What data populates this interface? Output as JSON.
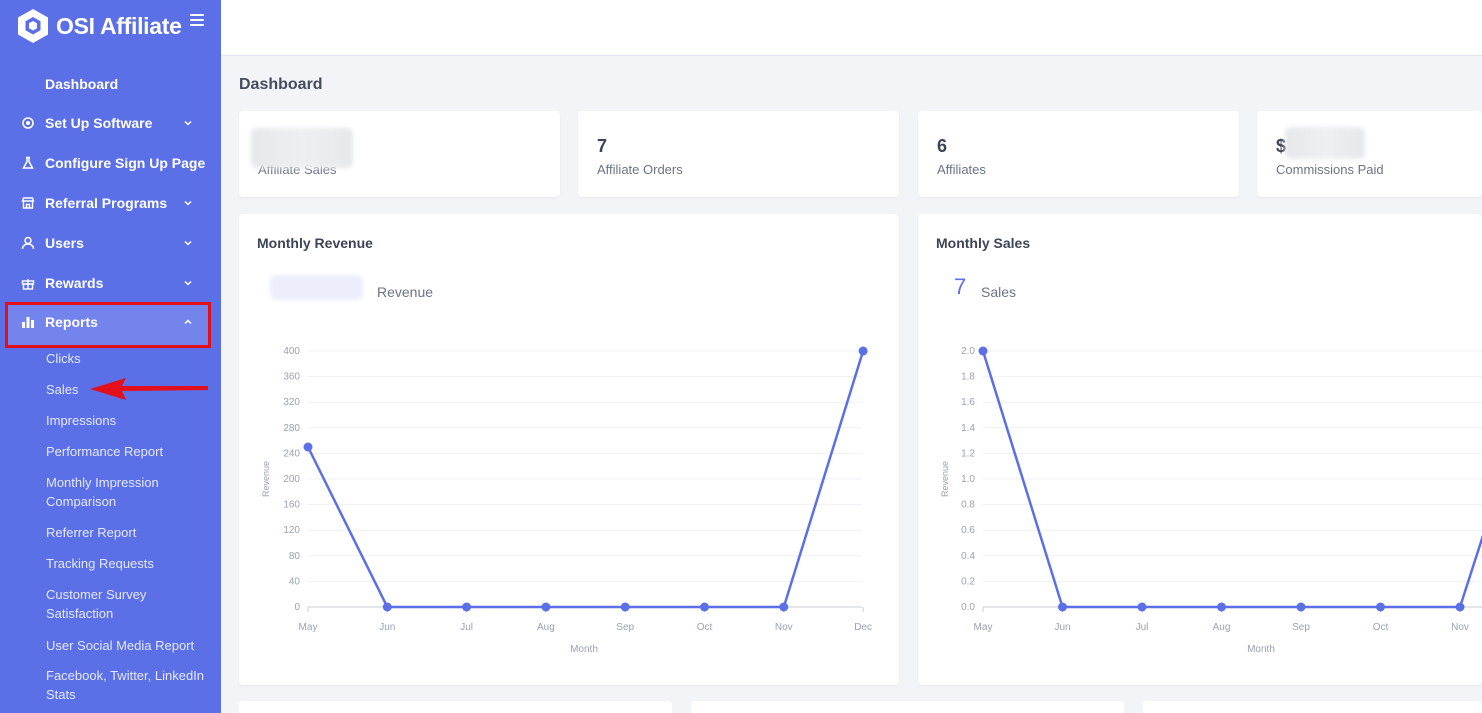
{
  "app": {
    "title": "OSI Affiliate"
  },
  "sidebar": {
    "dashboard": "Dashboard",
    "items": [
      {
        "label": "Set Up Software",
        "icon": "gear-icon",
        "expandable": true
      },
      {
        "label": "Configure Sign Up Page",
        "icon": "flask-icon",
        "expandable": false
      },
      {
        "label": "Referral Programs",
        "icon": "store-icon",
        "expandable": true
      },
      {
        "label": "Users",
        "icon": "user-icon",
        "expandable": true
      },
      {
        "label": "Rewards",
        "icon": "gift-icon",
        "expandable": true
      },
      {
        "label": "Reports",
        "icon": "bar-chart-icon",
        "expandable": true,
        "expanded": true
      }
    ],
    "reports_sub": [
      "Clicks",
      "Sales",
      "Impressions",
      "Performance Report",
      "Monthly Impression Comparison",
      "Referrer Report",
      "Tracking Requests",
      "Customer Survey Satisfaction",
      "User Social Media Report",
      "Facebook, Twitter, LinkedIn Stats"
    ]
  },
  "page": {
    "title": "Dashboard"
  },
  "stats": [
    {
      "value": "",
      "label": "Affiliate Sales"
    },
    {
      "value": "7",
      "label": "Affiliate Orders"
    },
    {
      "value": "6",
      "label": "Affiliates"
    },
    {
      "value": "$",
      "label": "Commissions Paid"
    }
  ],
  "charts": {
    "revenue": {
      "title": "Monthly Revenue",
      "legend_value": "",
      "legend_label": "Revenue"
    },
    "sales": {
      "title": "Monthly Sales",
      "legend_value": "7",
      "legend_label": "Sales"
    }
  },
  "colors": {
    "sidebar": "#5b6fe6",
    "accent": "#5b6fe6",
    "highlight_border": "#e3101b"
  },
  "chart_data": [
    {
      "type": "line",
      "title": "Monthly Revenue",
      "xlabel": "Month",
      "ylabel": "Revenue",
      "categories": [
        "May",
        "Jun",
        "Jul",
        "Aug",
        "Sep",
        "Oct",
        "Nov",
        "Dec"
      ],
      "values": [
        250,
        0,
        0,
        0,
        0,
        0,
        0,
        400
      ],
      "yticks": [
        "0",
        "40",
        "80",
        "120",
        "160",
        "200",
        "240",
        "280",
        "320",
        "360",
        "400"
      ],
      "ylim": [
        0,
        400
      ],
      "grid": true
    },
    {
      "type": "line",
      "title": "Monthly Sales",
      "xlabel": "Month",
      "ylabel": "Revenue",
      "categories": [
        "May",
        "Jun",
        "Jul",
        "Aug",
        "Sep",
        "Oct",
        "Nov"
      ],
      "values": [
        2,
        0,
        0,
        0,
        0,
        0,
        0
      ],
      "yticks": [
        "0.0",
        "0.2",
        "0.4",
        "0.6",
        "0.8",
        "1.0",
        "1.2",
        "1.4",
        "1.6",
        "1.8",
        "2.0"
      ],
      "ylim": [
        0,
        2
      ],
      "grid": true
    }
  ]
}
